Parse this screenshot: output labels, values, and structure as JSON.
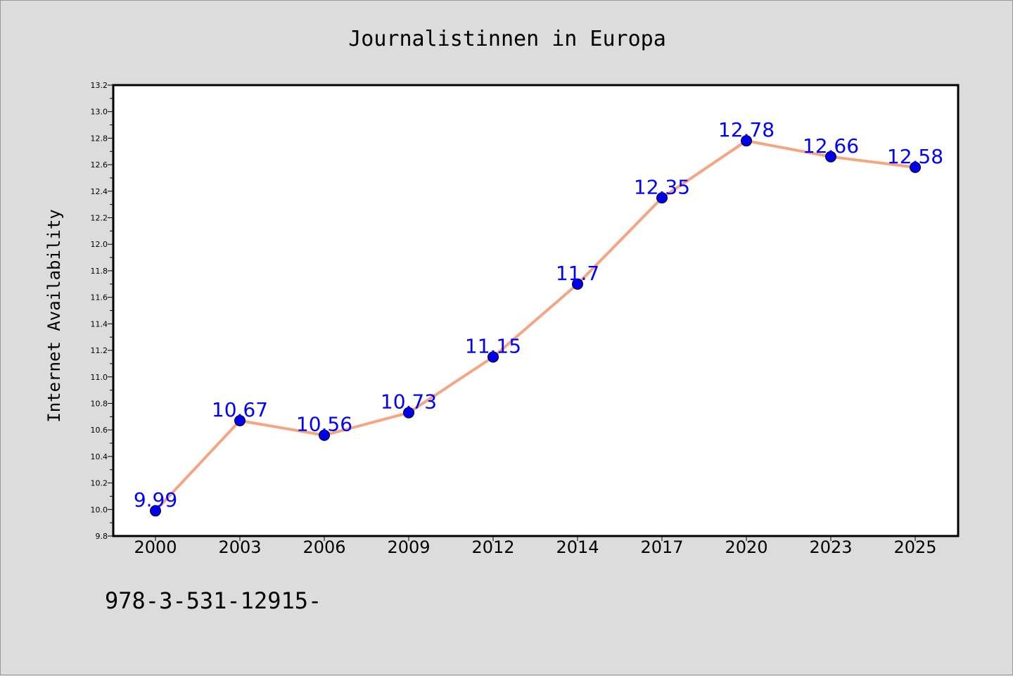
{
  "chart_data": {
    "type": "line",
    "title": "Journalistinnen in Europa",
    "xlabel": "",
    "ylabel": "Internet Availability",
    "categories": [
      "2000",
      "2003",
      "2006",
      "2009",
      "2012",
      "2014",
      "2017",
      "2020",
      "2023",
      "2025"
    ],
    "series": [
      {
        "values": [
          9.99,
          10.67,
          10.56,
          10.73,
          11.15,
          11.7,
          12.35,
          12.78,
          12.66,
          12.58
        ],
        "labels": [
          "9.99",
          "10.67",
          "10.56",
          "10.73",
          "11.15",
          "11.7",
          "12.35",
          "12.78",
          "12.66",
          "12.58"
        ]
      }
    ],
    "ylim": [
      9.8,
      13.2
    ],
    "yticks": [
      "9.8",
      "10.0",
      "10.2",
      "10.4",
      "10.6",
      "10.8",
      "11.0",
      "11.2",
      "11.4",
      "11.6",
      "11.8",
      "12.0",
      "12.2",
      "12.4",
      "12.6",
      "12.8",
      "13.0",
      "13.2"
    ],
    "grid": false,
    "legend": "none",
    "colors": {
      "line": "#f4a582",
      "marker": "#0000ee",
      "data_label": "#0000ff",
      "plot_background": "#ffffff",
      "figure_background": "#dcdcdc"
    }
  },
  "footer_text": "978-3-531-12915-"
}
